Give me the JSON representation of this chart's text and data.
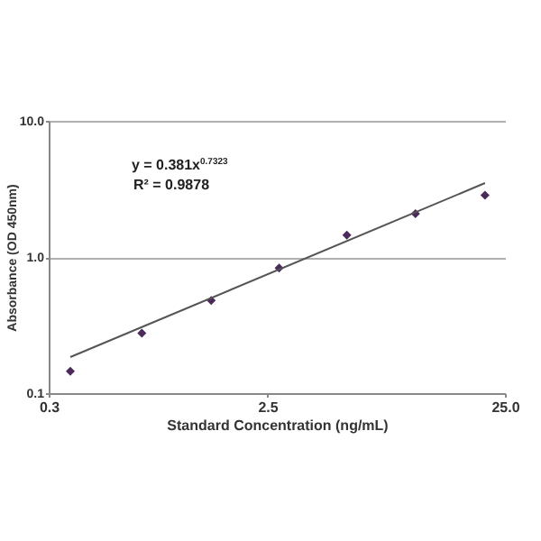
{
  "chart_data": {
    "type": "scatter",
    "xlabel": "Standard Concentration (ng/mL)",
    "ylabel": "Absorbance (OD 450nm)",
    "x": [
      0.37,
      0.74,
      1.45,
      2.8,
      5.4,
      10.5,
      20.6
    ],
    "series": [
      {
        "color": "#4b2a5a",
        "values": [
          0.145,
          0.276,
          0.48,
          0.83,
          1.45,
          2.08,
          2.84
        ],
        "marker": "diamond"
      },
      {
        "type": "line",
        "color": "#555555",
        "x": [
          0.37,
          20.6
        ],
        "values": [
          0.184,
          3.49
        ],
        "line_style": "solid"
      }
    ],
    "annotations": [
      "y = 0.381x$^{0.7323}$",
      "R² = 0.9878"
    ],
    "log": "xy",
    "xlim": [
      0.3,
      25.0
    ],
    "ylim": [
      0.1,
      10.0
    ],
    "xticks": [
      0.3,
      2.5,
      {
        "value": 25.0,
        "label": "25.0"
      }
    ],
    "yticks": [
      0.1,
      {
        "value": 1.0,
        "label": "1.0"
      },
      {
        "value": 10.0,
        "label": "10.0"
      }
    ],
    "grid": "y"
  }
}
